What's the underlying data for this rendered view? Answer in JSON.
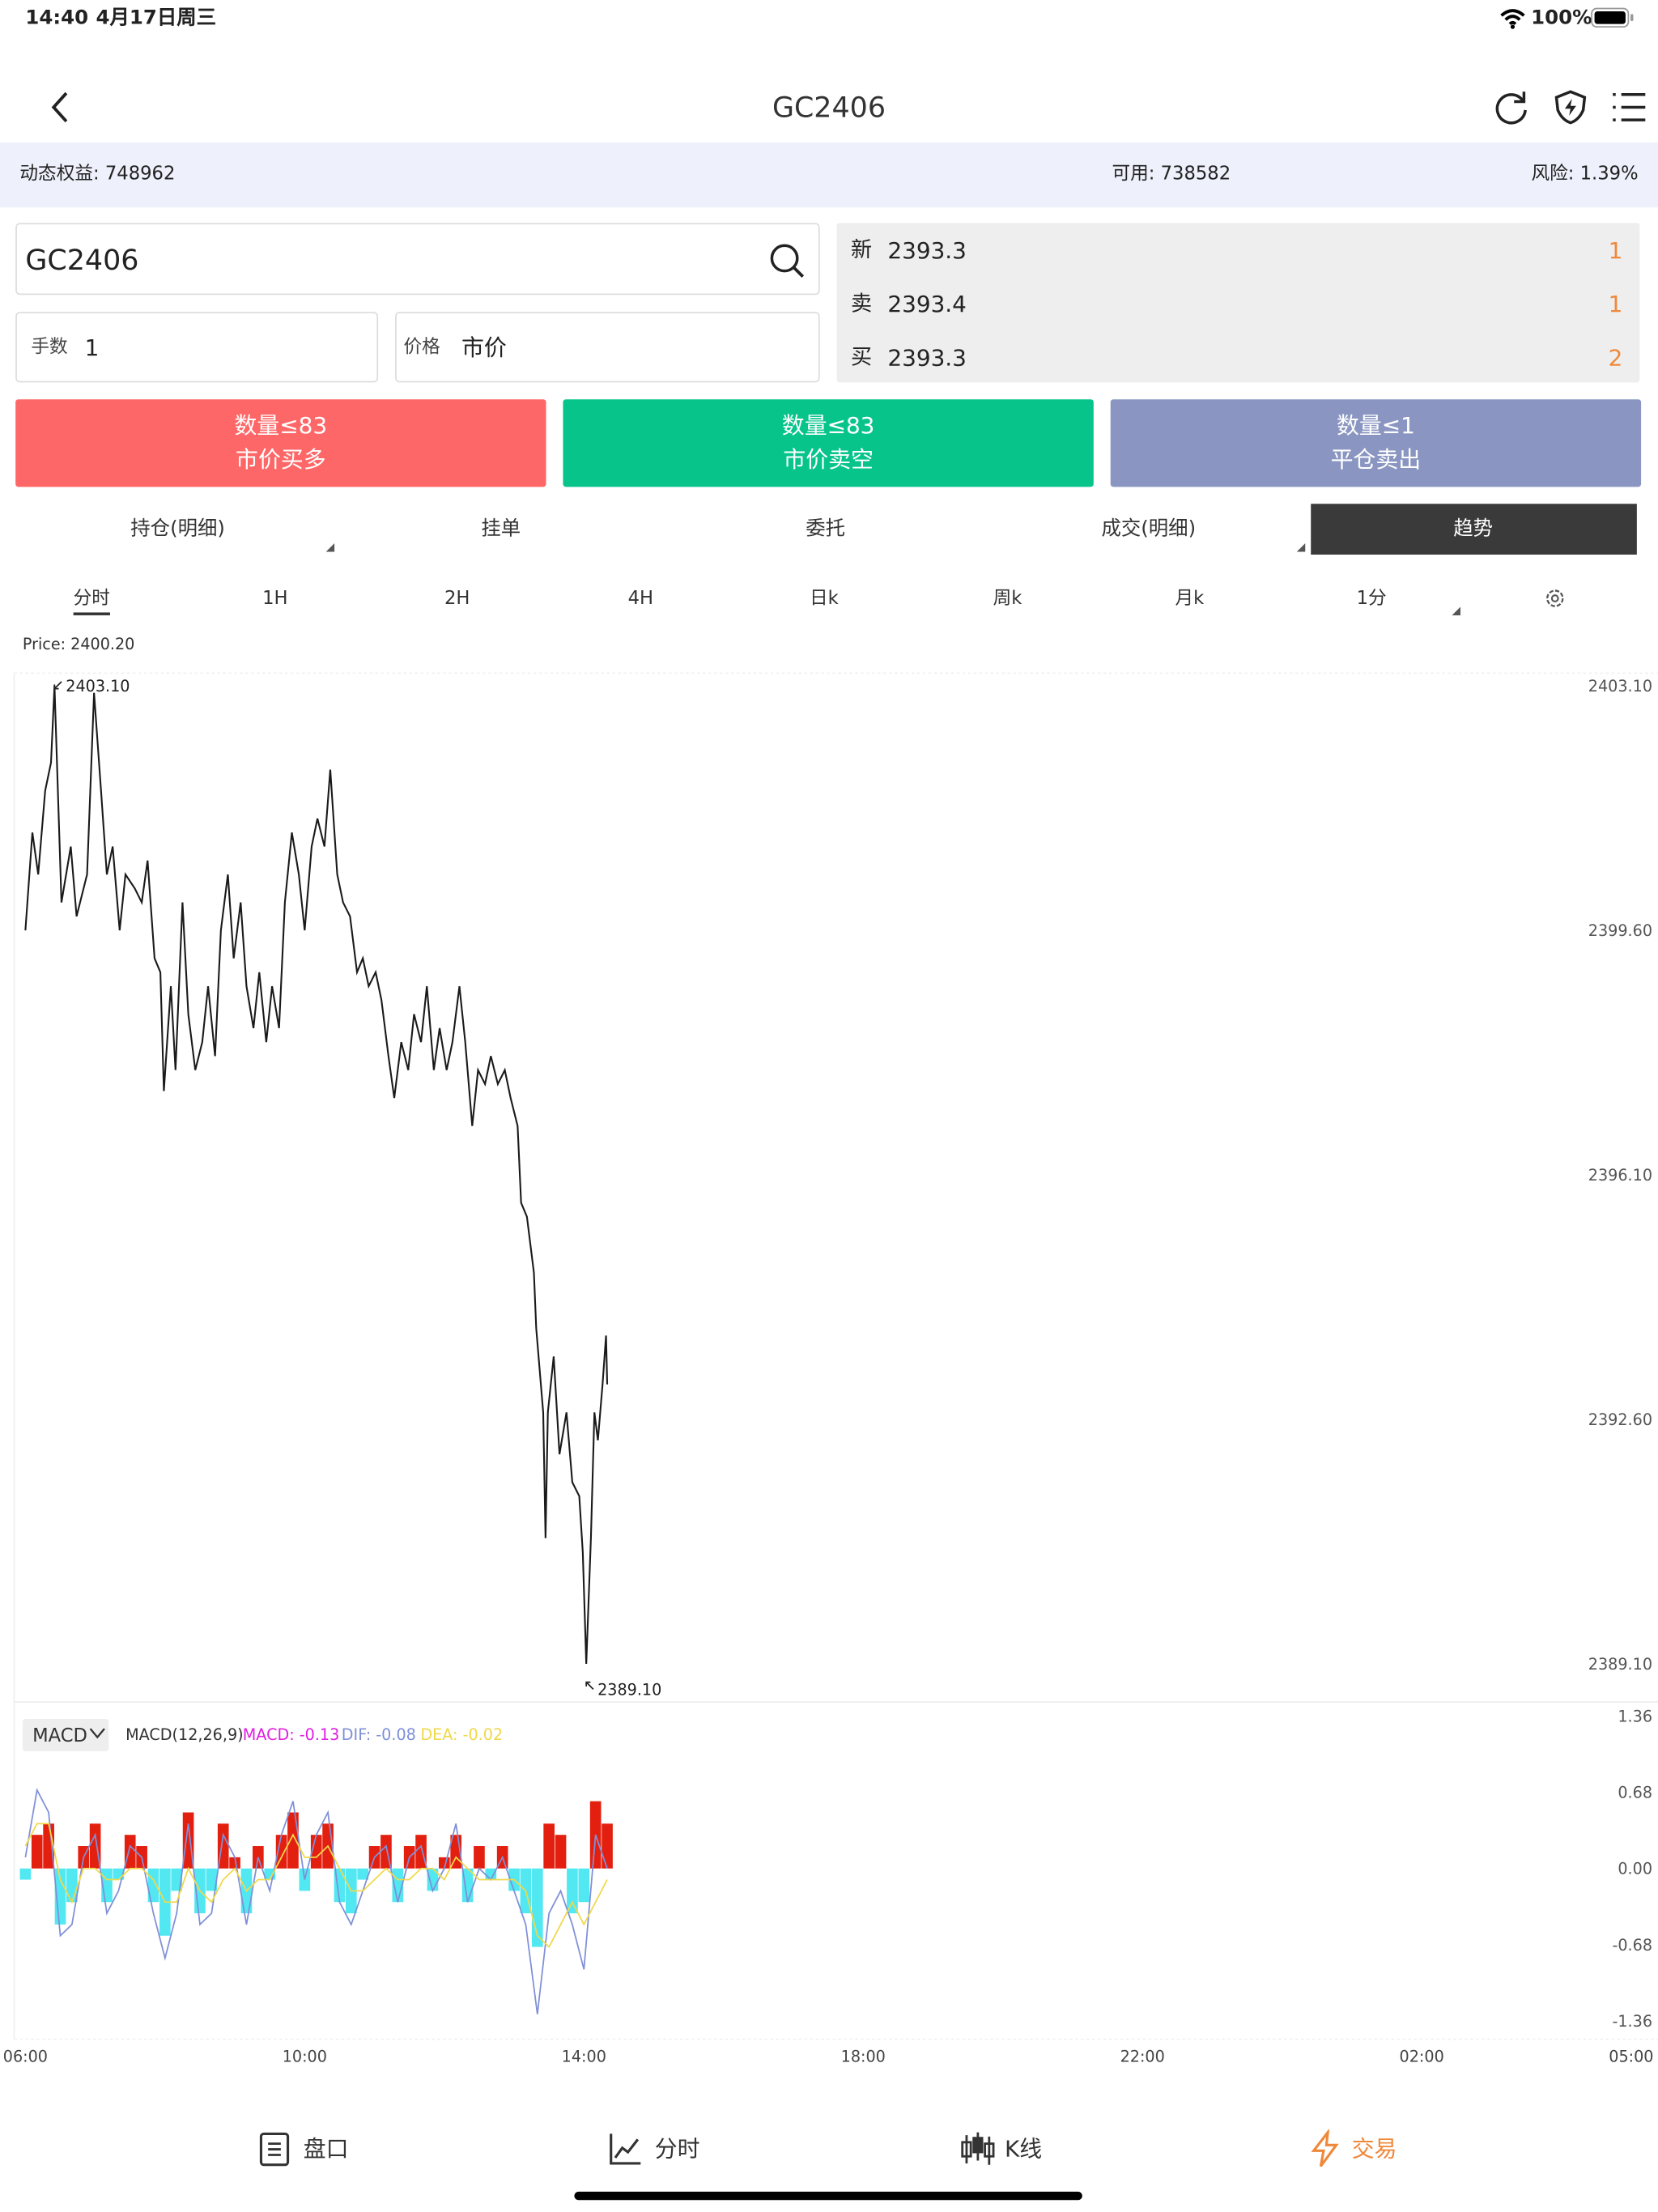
{
  "status_bar": {
    "time": "14:40",
    "date": "4月17日周三",
    "battery": "100%"
  },
  "header": {
    "title": "GC2406"
  },
  "account": {
    "equity": "动态权益: 748962",
    "available": "可用: 738582",
    "risk": "风险: 1.39%"
  },
  "order_form": {
    "symbol": "GC2406",
    "lots_label": "手数",
    "lots": 1,
    "price_label": "价格",
    "price": "市价"
  },
  "quotes": [
    {
      "label": "新",
      "price": 2393.3,
      "volume": 1
    },
    {
      "label": "卖",
      "price": 2393.4,
      "volume": 1
    },
    {
      "label": "买",
      "price": 2393.3,
      "volume": 2
    }
  ],
  "actions": [
    {
      "limit": "数量≤83",
      "label": "市价买多",
      "color": "#fe6767"
    },
    {
      "limit": "数量≤83",
      "label": "市价卖空",
      "color": "#07c48b"
    },
    {
      "limit": "数量≤1",
      "label": "平仓卖出",
      "color": "#8a96c1"
    }
  ],
  "tabs": {
    "items": [
      "持仓(明细)",
      "挂单",
      "委托",
      "成交(明细)",
      "趋势"
    ],
    "active": 4
  },
  "periods": {
    "items": [
      "分时",
      "1H",
      "2H",
      "4H",
      "日k",
      "周k",
      "月k",
      "1分"
    ],
    "active": 0
  },
  "chart_data": [
    {
      "type": "line",
      "crosshair_label": "Price: 2400.20",
      "color": "#1a1a1a",
      "x": [
        0,
        6,
        11,
        17,
        22,
        25,
        31,
        39,
        44,
        53,
        59,
        65,
        70,
        75,
        81,
        86,
        94,
        100,
        105,
        111,
        116,
        119,
        125,
        129,
        135,
        140,
        146,
        152,
        157,
        163,
        168,
        174,
        179,
        185,
        190,
        196,
        201,
        207,
        212,
        218,
        223,
        229,
        235,
        240,
        246,
        251,
        257,
        262,
        268,
        273,
        279,
        285,
        290,
        295,
        301,
        306,
        312,
        317,
        323,
        329,
        334,
        340,
        345,
        351,
        356,
        362,
        367,
        373,
        378,
        384,
        389,
        395,
        400,
        406,
        412,
        417,
        423,
        426,
        431,
        437,
        439,
        445,
        447,
        449,
        454,
        459,
        465,
        470,
        476,
        479,
        482,
        486,
        489,
        492,
        496,
        499,
        500
      ],
      "values": [
        2399.6,
        2401.0,
        2400.4,
        2401.6,
        2402.0,
        2403.1,
        2400.0,
        2400.8,
        2399.8,
        2400.4,
        2403.0,
        2401.6,
        2400.4,
        2400.8,
        2399.6,
        2400.4,
        2400.2,
        2400.0,
        2400.6,
        2399.2,
        2399.0,
        2397.3,
        2398.8,
        2397.6,
        2400.0,
        2398.4,
        2397.6,
        2398.0,
        2398.8,
        2397.8,
        2399.6,
        2400.4,
        2399.2,
        2400.0,
        2398.8,
        2398.2,
        2399.0,
        2398.0,
        2398.8,
        2398.2,
        2400.0,
        2401.0,
        2400.4,
        2399.6,
        2400.8,
        2401.2,
        2400.8,
        2401.9,
        2400.4,
        2400.0,
        2399.8,
        2399.0,
        2399.2,
        2398.8,
        2399.0,
        2398.6,
        2397.8,
        2397.2,
        2398.0,
        2397.6,
        2398.4,
        2398.0,
        2398.8,
        2397.6,
        2398.2,
        2397.6,
        2398.0,
        2398.8,
        2398.0,
        2396.8,
        2397.6,
        2397.4,
        2397.8,
        2397.4,
        2397.6,
        2397.2,
        2396.8,
        2395.7,
        2395.5,
        2394.7,
        2393.9,
        2392.7,
        2390.9,
        2392.7,
        2393.5,
        2392.1,
        2392.7,
        2391.7,
        2391.5,
        2390.7,
        2389.1,
        2390.9,
        2392.7,
        2392.3,
        2393.1,
        2393.8,
        2393.1
      ],
      "xlim": [
        0,
        1380
      ],
      "ylim": [
        2389.1,
        2403.1
      ],
      "yticks": [
        {
          "value": 2403.1,
          "label": "2403.10"
        },
        {
          "value": 2399.6,
          "label": "2399.60"
        },
        {
          "value": 2396.1,
          "label": "2396.10"
        },
        {
          "value": 2392.6,
          "label": "2392.60"
        },
        {
          "value": 2389.1,
          "label": "2389.10"
        }
      ],
      "annotations": [
        {
          "label": "2403.10",
          "x": 25,
          "y": 2403.1
        },
        {
          "label": "2389.10",
          "x": 482,
          "y": 2389.1
        }
      ]
    },
    {
      "type": "macd",
      "indicator": "MACD",
      "params": "MACD(12,26,9)",
      "x": [
        0,
        10,
        20,
        30,
        40,
        50,
        60,
        70,
        80,
        90,
        100,
        110,
        120,
        130,
        140,
        150,
        160,
        170,
        180,
        190,
        200,
        210,
        220,
        230,
        240,
        250,
        260,
        270,
        280,
        290,
        300,
        310,
        320,
        330,
        340,
        350,
        360,
        370,
        380,
        390,
        400,
        410,
        420,
        430,
        440,
        450,
        460,
        470,
        480,
        490,
        500
      ],
      "series": [
        {
          "name": "MACD: -0.13",
          "color": "#e020e0",
          "up_color": "#e3200f",
          "down_color": "#52e8f2",
          "values": [
            -0.1,
            0.3,
            0.4,
            -0.5,
            -0.3,
            0.2,
            0.4,
            -0.3,
            -0.1,
            0.3,
            0.2,
            -0.3,
            -0.6,
            -0.2,
            0.5,
            -0.4,
            -0.2,
            0.4,
            0.1,
            -0.4,
            0.2,
            -0.1,
            0.3,
            0.5,
            -0.2,
            0.3,
            0.4,
            -0.3,
            -0.4,
            -0.1,
            0.2,
            0.3,
            -0.3,
            0.2,
            0.3,
            -0.2,
            0.1,
            0.3,
            -0.3,
            0.2,
            -0.1,
            0.2,
            -0.2,
            -0.4,
            -0.7,
            0.4,
            0.3,
            -0.4,
            -0.3,
            0.6,
            0.4
          ]
        },
        {
          "name": "DIF: -0.08",
          "color": "#7f8fd8",
          "values": [
            0.1,
            0.7,
            0.5,
            -0.6,
            -0.5,
            0.1,
            0.3,
            -0.4,
            -0.2,
            0.2,
            0.1,
            -0.4,
            -0.8,
            -0.4,
            0.4,
            -0.5,
            -0.4,
            0.3,
            0.1,
            -0.5,
            0.1,
            -0.2,
            0.3,
            0.6,
            -0.1,
            0.3,
            0.5,
            -0.3,
            -0.5,
            -0.2,
            0.1,
            0.2,
            -0.3,
            0.1,
            0.2,
            -0.2,
            0.0,
            0.4,
            -0.3,
            0.0,
            -0.1,
            0.1,
            -0.2,
            -0.5,
            -1.3,
            -0.4,
            -0.2,
            -0.5,
            -0.9,
            0.3,
            0.0
          ]
        },
        {
          "name": "DEA: -0.02",
          "color": "#f0d84a",
          "values": [
            0.2,
            0.4,
            0.4,
            -0.1,
            -0.3,
            0.0,
            0.0,
            -0.1,
            -0.1,
            0.0,
            0.0,
            -0.1,
            -0.3,
            -0.3,
            0.0,
            -0.2,
            -0.3,
            -0.1,
            0.0,
            -0.2,
            -0.1,
            -0.1,
            0.1,
            0.3,
            0.1,
            0.1,
            0.2,
            0.0,
            -0.2,
            -0.2,
            -0.1,
            0.0,
            -0.1,
            -0.1,
            0.0,
            0.0,
            -0.1,
            0.1,
            0.0,
            -0.1,
            -0.1,
            -0.1,
            -0.1,
            -0.2,
            -0.6,
            -0.7,
            -0.5,
            -0.3,
            -0.5,
            -0.3,
            -0.1
          ]
        }
      ],
      "xlim": [
        0,
        1380
      ],
      "ylim": [
        -1.36,
        1.36
      ],
      "yticks": [
        1.36,
        0.68,
        {
          "value": 0,
          "label": "0.00"
        },
        -0.68,
        -1.36
      ],
      "xticks": [
        {
          "value": 0,
          "label": "06:00"
        },
        {
          "value": 240,
          "label": "10:00"
        },
        {
          "value": 480,
          "label": "14:00"
        },
        {
          "value": 720,
          "label": "18:00"
        },
        {
          "value": 960,
          "label": "22:00"
        },
        {
          "value": 1200,
          "label": "02:00"
        },
        {
          "value": 1380,
          "label": "05:00"
        }
      ]
    }
  ],
  "bottom_nav": {
    "items": [
      "盘口",
      "分时",
      "K线",
      "交易"
    ],
    "active": 3
  }
}
